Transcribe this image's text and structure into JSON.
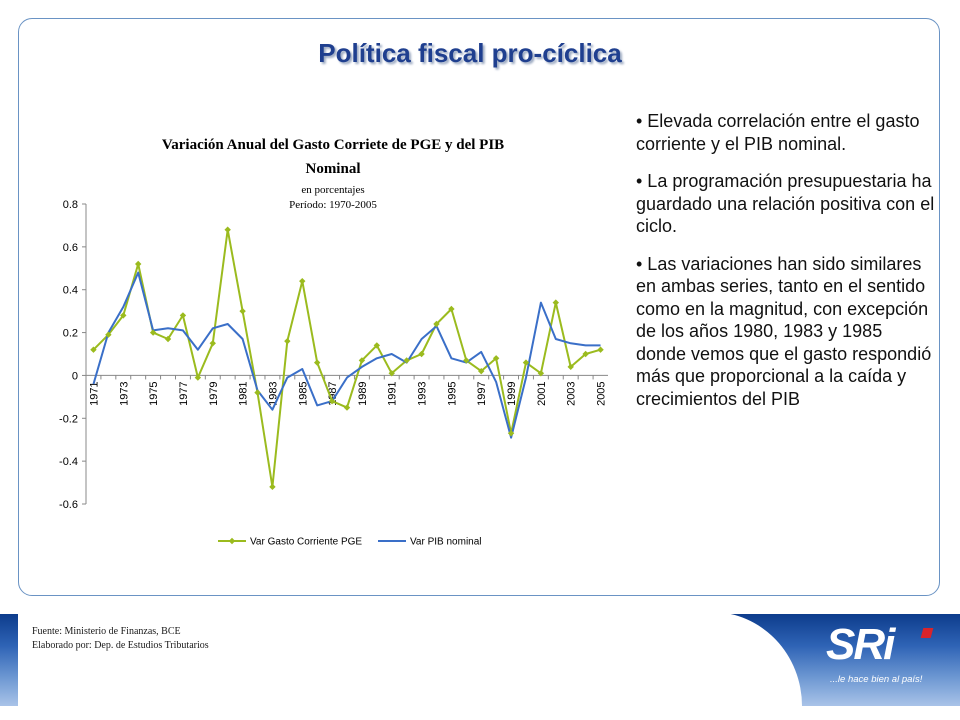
{
  "slide": {
    "title": "Política fiscal pro-cíclica",
    "bullets": [
      "• Elevada correlación entre el gasto corriente y el PIB nominal.",
      "• La programación presupuestaria ha guardado una relación positiva con el ciclo.",
      "• Las variaciones han sido similares en ambas series, tanto en el sentido como en la magnitud, con excepción de los años 1980, 1983 y 1985 donde vemos que el gasto respondió más que proporcional a la caída y crecimientos del PIB"
    ],
    "source_lines": [
      "Fuente: Ministerio de Finanzas, BCE",
      "Elaborado por: Dep. de Estudios Tributarios"
    ],
    "logo_text": "SRi",
    "logo_slogan": "...le hace bien al país!",
    "colors": {
      "title": "#1f3f8f",
      "panel_border": "#6a93c4",
      "series_gasto": "#9bbb1e",
      "series_pib": "#3a6fc8"
    }
  },
  "chart_data": {
    "type": "line",
    "title_line1": "Variación Anual del Gasto Corriete de PGE y del PIB",
    "title_line2": "Nominal",
    "subtitle_line1": "en porcentajes",
    "subtitle_line2": "Período: 1970-2005",
    "x": [
      1971,
      1972,
      1973,
      1974,
      1975,
      1976,
      1977,
      1978,
      1979,
      1980,
      1981,
      1982,
      1983,
      1984,
      1985,
      1986,
      1987,
      1988,
      1989,
      1990,
      1991,
      1992,
      1993,
      1994,
      1995,
      1996,
      1997,
      1998,
      1999,
      2000,
      2001,
      2002,
      2003,
      2004,
      2005
    ],
    "x_tick_labels": [
      "1971",
      "1973",
      "1975",
      "1977",
      "1979",
      "1981",
      "1983",
      "1985",
      "1987",
      "1989",
      "1991",
      "1993",
      "1995",
      "1997",
      "1999",
      "2001",
      "2003",
      "2005"
    ],
    "y_tick_labels": [
      "0.8",
      "0.6",
      "0.4",
      "0.2",
      "0",
      "-0.2",
      "-0.4",
      "-0.6"
    ],
    "ylim": [
      -0.6,
      0.8
    ],
    "legend_position": "bottom",
    "series": [
      {
        "name": "Var Gasto Corriente PGE",
        "color": "#9bbb1e",
        "marker": "diamond",
        "values": [
          0.12,
          0.19,
          0.28,
          0.52,
          0.2,
          0.17,
          0.28,
          -0.01,
          0.15,
          0.68,
          0.3,
          -0.08,
          -0.52,
          0.16,
          0.44,
          0.06,
          -0.12,
          -0.15,
          0.07,
          0.14,
          0.01,
          0.07,
          0.1,
          0.24,
          0.31,
          0.07,
          0.02,
          0.08,
          -0.27,
          0.06,
          0.01,
          0.34,
          0.04,
          0.1,
          0.12
        ]
      },
      {
        "name": "Var PIB nominal",
        "color": "#3a6fc8",
        "marker": "none",
        "values": [
          -0.04,
          0.2,
          0.32,
          0.48,
          0.21,
          0.22,
          0.21,
          0.12,
          0.22,
          0.24,
          0.17,
          -0.07,
          -0.16,
          -0.01,
          0.03,
          -0.14,
          -0.12,
          -0.01,
          0.04,
          0.08,
          0.1,
          0.06,
          0.17,
          0.23,
          0.08,
          0.06,
          0.11,
          -0.03,
          -0.29,
          -0.01,
          0.34,
          0.17,
          0.15,
          0.14,
          0.14
        ]
      }
    ]
  }
}
